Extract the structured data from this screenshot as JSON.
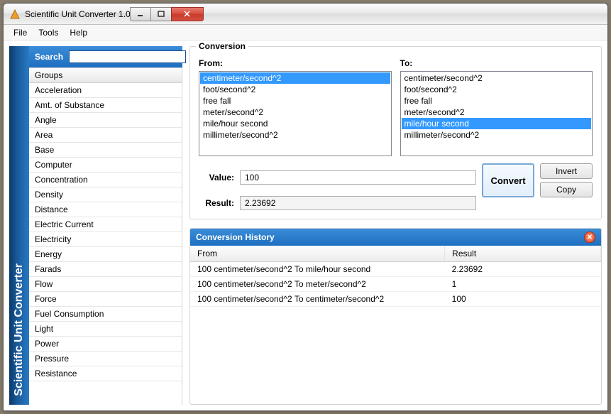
{
  "window": {
    "title": "Scientific Unit Converter 1.0",
    "accent_color": "#1e6fc0",
    "titlebar_gradient": [
      "#fdfdfd",
      "#dcdcdc"
    ],
    "close_color": "#c93a2a"
  },
  "menubar": {
    "items": [
      "File",
      "Tools",
      "Help"
    ]
  },
  "vertical_label": "Scientific Unit Converter",
  "search": {
    "label": "Search",
    "value": ""
  },
  "groups": {
    "header": "Groups",
    "items": [
      "Acceleration",
      "Amt. of Substance",
      "Angle",
      "Area",
      "Base",
      "Computer",
      "Concentration",
      "Density",
      "Distance",
      "Electric Current",
      "Electricity",
      "Energy",
      "Farads",
      "Flow",
      "Force",
      "Fuel Consumption",
      "Light",
      "Power",
      "Pressure",
      "Resistance"
    ]
  },
  "conversion": {
    "legend": "Conversion",
    "from_label": "From:",
    "to_label": "To:",
    "units": [
      "centimeter/second^2",
      "foot/second^2",
      "free fall",
      "meter/second^2",
      "mile/hour second",
      "millimeter/second^2"
    ],
    "from_selected_index": 0,
    "to_selected_index": 4,
    "value_label": "Value:",
    "value": "100",
    "result_label": "Result:",
    "result": "2.23692",
    "convert_label": "Convert",
    "invert_label": "Invert",
    "copy_label": "Copy"
  },
  "history": {
    "header": "Conversion History",
    "columns": [
      "From",
      "Result"
    ],
    "rows": [
      [
        "100 centimeter/second^2 To mile/hour second",
        "2.23692"
      ],
      [
        "100 centimeter/second^2 To meter/second^2",
        "1"
      ],
      [
        "100 centimeter/second^2 To centimeter/second^2",
        "100"
      ]
    ]
  }
}
